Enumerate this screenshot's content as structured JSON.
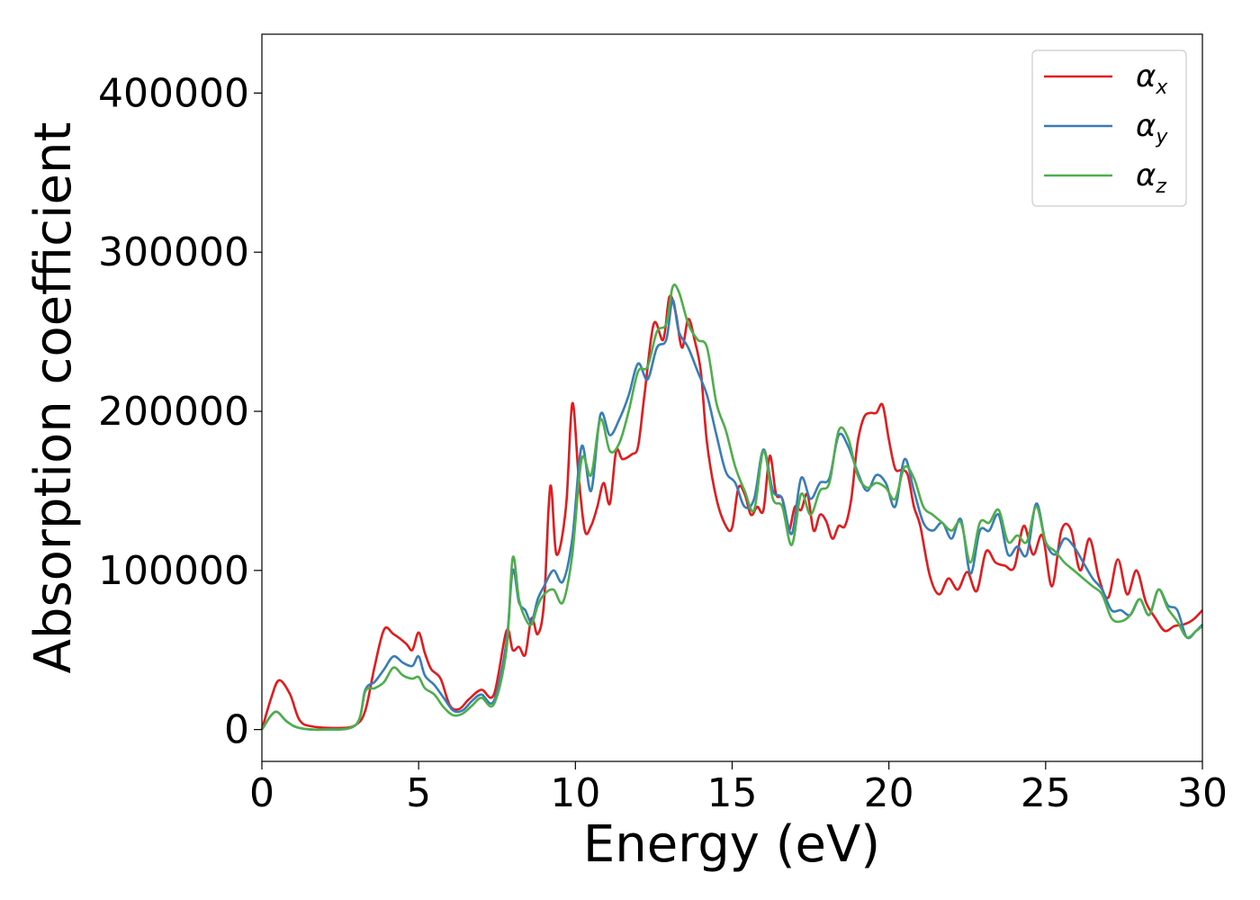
{
  "chart_data": {
    "type": "line",
    "title": "",
    "xlabel": "Energy (eV)",
    "ylabel": "Absorption coefficient",
    "xlim": [
      0,
      30
    ],
    "ylim": [
      -20000,
      437000
    ],
    "xticks": [
      0,
      5,
      10,
      15,
      20,
      25,
      30
    ],
    "xtick_labels": [
      "0",
      "5",
      "10",
      "15",
      "20",
      "25",
      "30"
    ],
    "yticks": [
      0,
      100000,
      200000,
      300000,
      400000
    ],
    "ytick_labels": [
      "0",
      "100000",
      "200000",
      "300000",
      "400000"
    ],
    "grid": false,
    "legend_position": "top-right",
    "series": [
      {
        "name": "αx",
        "legend_base": "α",
        "legend_sub": "x",
        "color": "#e41a1c",
        "x": [
          0,
          0.3,
          0.55,
          0.9,
          1.2,
          1.6,
          2.5,
          3.0,
          3.3,
          3.6,
          3.9,
          4.2,
          4.6,
          4.8,
          5.0,
          5.2,
          5.4,
          5.7,
          6.0,
          6.3,
          6.6,
          7.0,
          7.4,
          7.8,
          8.0,
          8.2,
          8.4,
          8.6,
          8.8,
          9.0,
          9.2,
          9.4,
          9.7,
          9.9,
          10.1,
          10.3,
          10.5,
          10.7,
          10.9,
          11.1,
          11.3,
          11.5,
          11.8,
          12.0,
          12.2,
          12.5,
          12.8,
          13.0,
          13.2,
          13.4,
          13.6,
          13.8,
          14.0,
          14.2,
          14.5,
          14.8,
          15.0,
          15.2,
          15.4,
          15.6,
          15.8,
          16.0,
          16.2,
          16.4,
          16.6,
          16.8,
          17.0,
          17.2,
          17.4,
          17.6,
          17.8,
          18.0,
          18.2,
          18.4,
          18.6,
          18.8,
          19.0,
          19.2,
          19.4,
          19.6,
          19.8,
          20.0,
          20.2,
          20.4,
          20.6,
          20.8,
          21.0,
          21.3,
          21.6,
          21.9,
          22.2,
          22.5,
          22.8,
          23.1,
          23.4,
          23.7,
          24.0,
          24.3,
          24.6,
          24.9,
          25.2,
          25.5,
          25.8,
          26.1,
          26.4,
          26.7,
          27.0,
          27.3,
          27.6,
          27.9,
          28.2,
          28.5,
          28.8,
          29.1,
          29.4,
          29.7,
          30.0
        ],
        "y": [
          0,
          20000,
          31000,
          22000,
          6000,
          2000,
          1000,
          3000,
          12000,
          40000,
          63000,
          60000,
          54000,
          50000,
          61000,
          48000,
          38000,
          32000,
          15000,
          13000,
          19000,
          25000,
          22000,
          62000,
          50000,
          52000,
          47000,
          70000,
          60000,
          80000,
          153000,
          110000,
          140000,
          205000,
          160000,
          125000,
          128000,
          140000,
          155000,
          142000,
          175000,
          170000,
          173000,
          178000,
          210000,
          255000,
          245000,
          272000,
          262000,
          240000,
          258000,
          245000,
          225000,
          180000,
          145000,
          128000,
          127000,
          152000,
          148000,
          135000,
          140000,
          138000,
          172000,
          148000,
          145000,
          125000,
          140000,
          138000,
          148000,
          125000,
          135000,
          131000,
          120000,
          128000,
          128000,
          145000,
          180000,
          196000,
          199000,
          199000,
          204000,
          182000,
          164000,
          163000,
          160000,
          140000,
          128000,
          97000,
          85000,
          95000,
          88000,
          99000,
          87000,
          112000,
          105000,
          103000,
          102000,
          128000,
          110000,
          122000,
          90000,
          125000,
          126000,
          100000,
          120000,
          95000,
          83000,
          107000,
          85000,
          100000,
          80000,
          70000,
          62000,
          65000,
          66000,
          69000,
          75000
        ]
      },
      {
        "name": "αy",
        "legend_base": "α",
        "legend_sub": "y",
        "color": "#377eb8",
        "x": [
          0,
          0.3,
          0.5,
          0.8,
          1.2,
          2.0,
          3.0,
          3.3,
          3.6,
          3.9,
          4.2,
          4.5,
          4.8,
          5.0,
          5.2,
          5.5,
          5.8,
          6.1,
          6.4,
          6.7,
          7.0,
          7.4,
          7.8,
          8.0,
          8.2,
          8.4,
          8.6,
          8.8,
          9.0,
          9.3,
          9.6,
          9.9,
          10.2,
          10.5,
          10.8,
          11.1,
          11.4,
          11.7,
          12.0,
          12.3,
          12.6,
          12.9,
          13.1,
          13.3,
          13.6,
          13.9,
          14.2,
          14.5,
          14.8,
          15.1,
          15.4,
          15.7,
          16.0,
          16.3,
          16.6,
          16.9,
          17.2,
          17.5,
          17.8,
          18.1,
          18.4,
          18.7,
          19.0,
          19.3,
          19.6,
          19.9,
          20.2,
          20.5,
          20.8,
          21.1,
          21.4,
          21.7,
          22.0,
          22.3,
          22.6,
          22.9,
          23.2,
          23.5,
          23.8,
          24.1,
          24.4,
          24.7,
          25.0,
          25.3,
          25.6,
          25.9,
          26.2,
          26.5,
          26.8,
          27.1,
          27.4,
          27.7,
          28.0,
          28.3,
          28.6,
          28.9,
          29.2,
          29.5,
          29.8,
          30.0
        ],
        "y": [
          0,
          9000,
          11000,
          5000,
          1000,
          0,
          3000,
          25000,
          30000,
          38000,
          46000,
          42000,
          40000,
          46000,
          34000,
          28000,
          20000,
          12000,
          12000,
          18000,
          22000,
          18000,
          55000,
          100000,
          80000,
          75000,
          68000,
          82000,
          90000,
          100000,
          93000,
          120000,
          178000,
          150000,
          198000,
          185000,
          195000,
          210000,
          230000,
          220000,
          240000,
          245000,
          270000,
          250000,
          240000,
          225000,
          210000,
          185000,
          162000,
          155000,
          140000,
          145000,
          176000,
          150000,
          145000,
          123000,
          158000,
          145000,
          155000,
          158000,
          185000,
          178000,
          162000,
          150000,
          160000,
          155000,
          140000,
          170000,
          150000,
          130000,
          125000,
          130000,
          120000,
          132000,
          98000,
          125000,
          125000,
          135000,
          110000,
          115000,
          110000,
          142000,
          118000,
          110000,
          120000,
          115000,
          105000,
          95000,
          88000,
          75000,
          75000,
          72000,
          82000,
          72000,
          88000,
          78000,
          75000,
          58000,
          62000,
          66000
        ]
      },
      {
        "name": "αz",
        "legend_base": "α",
        "legend_sub": "z",
        "color": "#4daf4a",
        "x": [
          0,
          0.3,
          0.5,
          0.8,
          1.2,
          2.0,
          3.0,
          3.3,
          3.6,
          3.9,
          4.2,
          4.5,
          4.8,
          5.0,
          5.2,
          5.5,
          5.8,
          6.1,
          6.4,
          6.7,
          7.0,
          7.4,
          7.8,
          8.0,
          8.2,
          8.4,
          8.6,
          8.8,
          9.0,
          9.3,
          9.6,
          9.9,
          10.2,
          10.5,
          10.8,
          11.1,
          11.4,
          11.7,
          12.0,
          12.3,
          12.6,
          12.9,
          13.1,
          13.3,
          13.6,
          13.9,
          14.2,
          14.5,
          14.8,
          15.1,
          15.4,
          15.7,
          16.0,
          16.3,
          16.6,
          16.9,
          17.2,
          17.5,
          17.8,
          18.1,
          18.4,
          18.7,
          19.0,
          19.3,
          19.6,
          19.9,
          20.2,
          20.5,
          20.8,
          21.1,
          21.4,
          21.7,
          22.0,
          22.3,
          22.6,
          22.9,
          23.2,
          23.5,
          23.8,
          24.1,
          24.4,
          24.7,
          25.0,
          25.3,
          25.6,
          25.9,
          26.2,
          26.5,
          26.8,
          27.1,
          27.4,
          27.7,
          28.0,
          28.3,
          28.6,
          28.9,
          29.2,
          29.5,
          29.8,
          30.0
        ],
        "y": [
          0,
          9000,
          11000,
          5000,
          1000,
          0,
          3000,
          24000,
          26000,
          30000,
          39000,
          34000,
          32000,
          33000,
          26000,
          22000,
          14000,
          9000,
          10000,
          15000,
          20000,
          16000,
          50000,
          108000,
          82000,
          70000,
          66000,
          78000,
          85000,
          88000,
          80000,
          110000,
          170000,
          160000,
          195000,
          175000,
          180000,
          200000,
          225000,
          228000,
          250000,
          255000,
          278000,
          275000,
          255000,
          245000,
          240000,
          205000,
          188000,
          165000,
          150000,
          138000,
          175000,
          145000,
          140000,
          116000,
          148000,
          135000,
          150000,
          155000,
          188000,
          183000,
          160000,
          152000,
          155000,
          152000,
          145000,
          165000,
          158000,
          140000,
          135000,
          130000,
          125000,
          130000,
          105000,
          130000,
          130000,
          138000,
          118000,
          122000,
          118000,
          140000,
          118000,
          112000,
          105000,
          100000,
          95000,
          90000,
          85000,
          70000,
          68000,
          72000,
          82000,
          72000,
          88000,
          76000,
          68000,
          58000,
          62000,
          65000
        ]
      }
    ]
  }
}
